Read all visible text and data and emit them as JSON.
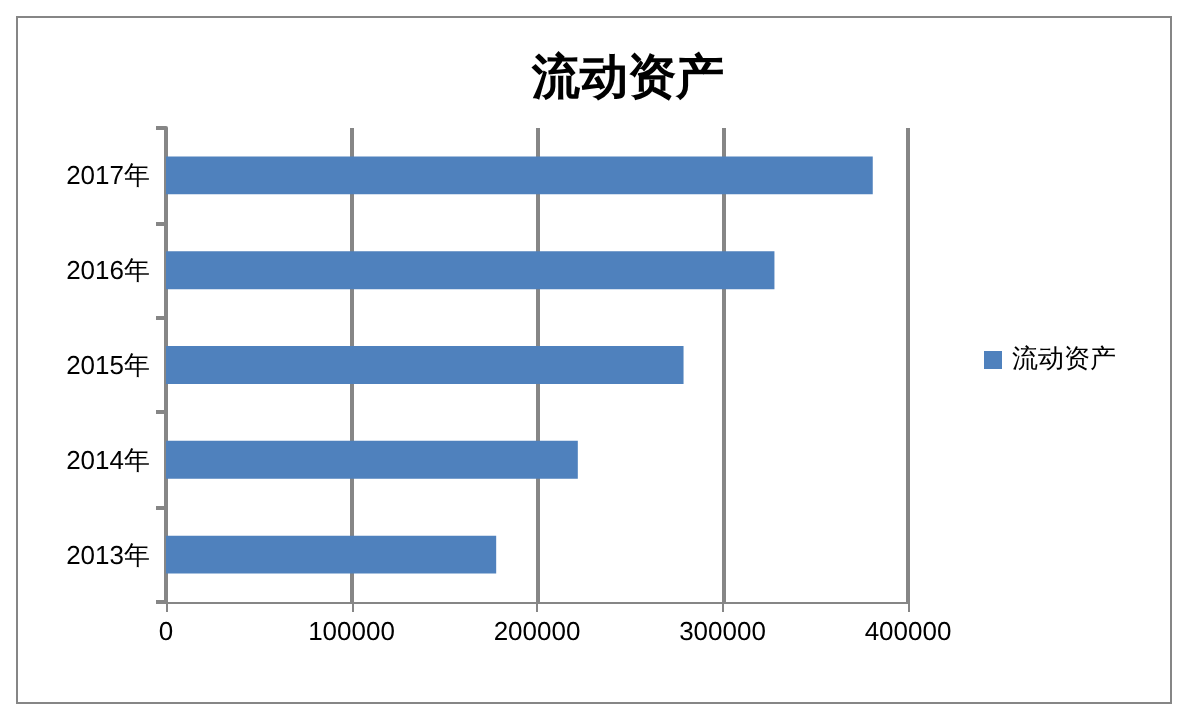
{
  "chart_data": {
    "type": "bar",
    "orientation": "horizontal",
    "title": "流动资产",
    "categories": [
      "2017年",
      "2016年",
      "2015年",
      "2014年",
      "2013年"
    ],
    "series": [
      {
        "name": "流动资产",
        "color": "#4f81bd",
        "values": [
          381000,
          328000,
          279000,
          222000,
          178000
        ]
      }
    ],
    "xlim": [
      0,
      400000
    ],
    "xticks": [
      0,
      100000,
      200000,
      300000,
      400000
    ],
    "grid": "x",
    "legend": "right"
  }
}
